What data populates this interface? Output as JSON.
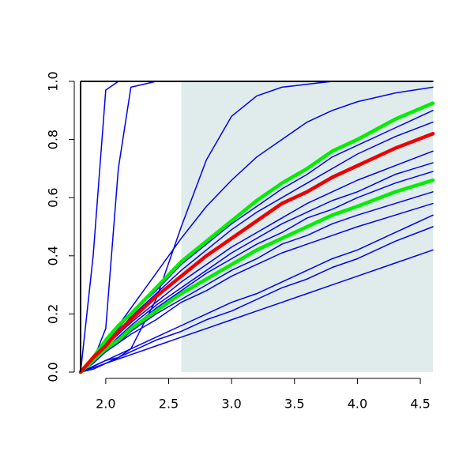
{
  "chart_data": {
    "type": "line",
    "x": [
      1.8,
      1.9,
      2.0,
      2.1,
      2.2,
      2.4,
      2.6,
      2.8,
      3.0,
      3.2,
      3.4,
      3.6,
      3.8,
      4.0,
      4.3,
      4.6
    ],
    "xlim": [
      1.8,
      4.6
    ],
    "ylim": [
      0,
      1
    ],
    "xticks": [
      {
        "value": 2,
        "label": "2.0"
      },
      2.5,
      {
        "value": 3,
        "label": "3.0"
      },
      3.5,
      {
        "value": 4,
        "label": "4.0"
      },
      4.5
    ],
    "yticks": [
      {
        "value": 0,
        "label": "0.0"
      },
      0.2,
      0.4,
      0.6,
      0.8,
      {
        "value": 1,
        "label": "1.0"
      }
    ],
    "shade": {
      "range": [
        2.6,
        4.6
      ],
      "color": "#e0ecec"
    },
    "series": [
      {
        "color": "#0000ee",
        "width": 1.5,
        "values": [
          0,
          0.4,
          0.97,
          1,
          1,
          1,
          1,
          1,
          1,
          1,
          1,
          1,
          1,
          1,
          1,
          1
        ]
      },
      {
        "color": "#0000ee",
        "width": 1.5,
        "values": [
          0,
          0.04,
          0.15,
          0.7,
          0.98,
          1,
          1,
          1,
          1,
          1,
          1,
          1,
          1,
          1,
          1,
          1
        ]
      },
      {
        "color": "#0000ee",
        "width": 1.5,
        "values": [
          0,
          0.01,
          0.03,
          0.05,
          0.08,
          0.25,
          0.5,
          0.73,
          0.88,
          0.95,
          0.98,
          0.99,
          1,
          1,
          1,
          1
        ]
      },
      {
        "color": "#0000ee",
        "width": 1.5,
        "values": [
          0,
          0.05,
          0.1,
          0.16,
          0.22,
          0.34,
          0.46,
          0.57,
          0.66,
          0.74,
          0.8,
          0.86,
          0.9,
          0.93,
          0.96,
          0.98
        ]
      },
      {
        "color": "#0000ee",
        "width": 1.5,
        "values": [
          0,
          0.05,
          0.1,
          0.15,
          0.2,
          0.28,
          0.37,
          0.44,
          0.51,
          0.57,
          0.63,
          0.68,
          0.74,
          0.78,
          0.84,
          0.9
        ]
      },
      {
        "color": "#0000ee",
        "width": 1.5,
        "values": [
          0,
          0.05,
          0.1,
          0.14,
          0.19,
          0.27,
          0.35,
          0.42,
          0.49,
          0.55,
          0.6,
          0.65,
          0.7,
          0.75,
          0.81,
          0.86
        ]
      },
      {
        "color": "#0000ee",
        "width": 1.5,
        "values": [
          0,
          0.04,
          0.09,
          0.13,
          0.17,
          0.24,
          0.31,
          0.37,
          0.43,
          0.48,
          0.53,
          0.58,
          0.62,
          0.66,
          0.71,
          0.76
        ]
      },
      {
        "color": "#0000ee",
        "width": 1.5,
        "values": [
          0,
          0.04,
          0.08,
          0.12,
          0.16,
          0.23,
          0.29,
          0.35,
          0.41,
          0.46,
          0.51,
          0.55,
          0.59,
          0.62,
          0.68,
          0.72
        ]
      },
      {
        "color": "#0000ee",
        "width": 1.5,
        "values": [
          0,
          0.04,
          0.08,
          0.12,
          0.15,
          0.22,
          0.28,
          0.34,
          0.39,
          0.44,
          0.48,
          0.53,
          0.56,
          0.6,
          0.65,
          0.69
        ]
      },
      {
        "color": "#0000ee",
        "width": 1.5,
        "values": [
          0,
          0.04,
          0.07,
          0.1,
          0.14,
          0.2,
          0.25,
          0.3,
          0.35,
          0.39,
          0.44,
          0.47,
          0.51,
          0.54,
          0.58,
          0.62
        ]
      },
      {
        "color": "#0000ee",
        "width": 1.5,
        "values": [
          0,
          0.03,
          0.07,
          0.1,
          0.13,
          0.18,
          0.24,
          0.28,
          0.33,
          0.37,
          0.41,
          0.44,
          0.47,
          0.5,
          0.54,
          0.58
        ]
      },
      {
        "color": "#0000ee",
        "width": 1.5,
        "values": [
          0,
          0.02,
          0.04,
          0.06,
          0.08,
          0.12,
          0.16,
          0.2,
          0.24,
          0.27,
          0.31,
          0.35,
          0.39,
          0.42,
          0.48,
          0.54
        ]
      },
      {
        "color": "#0000ee",
        "width": 1.5,
        "values": [
          0,
          0.02,
          0.04,
          0.05,
          0.07,
          0.11,
          0.14,
          0.18,
          0.21,
          0.25,
          0.29,
          0.32,
          0.36,
          0.39,
          0.45,
          0.5
        ]
      },
      {
        "color": "#0000ee",
        "width": 1.5,
        "values": [
          0,
          0.015,
          0.03,
          0.045,
          0.06,
          0.09,
          0.12,
          0.15,
          0.18,
          0.21,
          0.24,
          0.27,
          0.3,
          0.33,
          0.375,
          0.42
        ]
      },
      {
        "color": "#00ee00",
        "width": 4.5,
        "values": [
          0,
          0.05,
          0.11,
          0.16,
          0.2,
          0.29,
          0.38,
          0.45,
          0.52,
          0.59,
          0.65,
          0.7,
          0.76,
          0.8,
          0.87,
          0.925
        ]
      },
      {
        "color": "#00ee00",
        "width": 4.5,
        "values": [
          0,
          0.04,
          0.08,
          0.11,
          0.15,
          0.21,
          0.27,
          0.32,
          0.37,
          0.42,
          0.46,
          0.5,
          0.54,
          0.57,
          0.62,
          0.66
        ]
      },
      {
        "color": "#ee0000",
        "width": 4.5,
        "values": [
          0,
          0.05,
          0.09,
          0.14,
          0.18,
          0.26,
          0.33,
          0.4,
          0.46,
          0.52,
          0.58,
          0.62,
          0.67,
          0.71,
          0.77,
          0.82
        ]
      }
    ]
  }
}
